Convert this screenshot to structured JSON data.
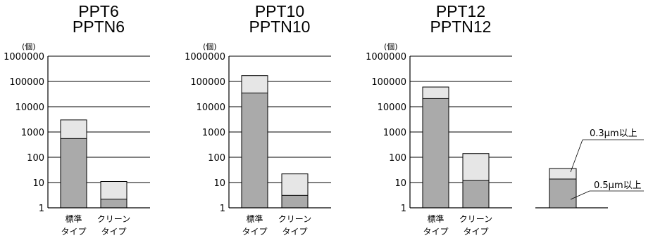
{
  "colors": {
    "lower_bar": "#aaaaaa",
    "upper_bar": "#e6e6e6",
    "stroke": "#000000"
  },
  "chart_data": [
    {
      "type": "bar",
      "title": [
        "PPT6",
        "PPTN6"
      ],
      "unit": "(個)",
      "yscale": "log",
      "ylim": [
        1,
        1000000
      ],
      "yticks": [
        "1000000",
        "100000",
        "10000",
        "1000",
        "100",
        "10",
        "1"
      ],
      "grid": true,
      "categories": [
        [
          "標準",
          "タイプ"
        ],
        [
          "クリーン",
          "タイプ"
        ]
      ],
      "series": [
        {
          "name": "0.5μm以上",
          "values": [
            550,
            2.2
          ]
        },
        {
          "name": "0.3μm以上",
          "values": [
            3000,
            11
          ]
        }
      ]
    },
    {
      "type": "bar",
      "title": [
        "PPT10",
        "PPTN10"
      ],
      "unit": "(個)",
      "yscale": "log",
      "ylim": [
        1,
        1000000
      ],
      "yticks": [
        "1000000",
        "100000",
        "10000",
        "1000",
        "100",
        "10",
        "1"
      ],
      "grid": true,
      "categories": [
        [
          "標準",
          "タイプ"
        ],
        [
          "クリーン",
          "タイプ"
        ]
      ],
      "series": [
        {
          "name": "0.5μm以上",
          "values": [
            35000,
            3.1
          ]
        },
        {
          "name": "0.3μm以上",
          "values": [
            170000,
            22
          ]
        }
      ]
    },
    {
      "type": "bar",
      "title": [
        "PPT12",
        "PPTN12"
      ],
      "unit": "(個)",
      "yscale": "log",
      "ylim": [
        1,
        1000000
      ],
      "yticks": [
        "1000000",
        "100000",
        "10000",
        "1000",
        "100",
        "10",
        "1"
      ],
      "grid": true,
      "categories": [
        [
          "標準",
          "タイプ"
        ],
        [
          "クリーン",
          "タイプ"
        ]
      ],
      "series": [
        {
          "name": "0.5μm以上",
          "values": [
            21000,
            12
          ]
        },
        {
          "name": "0.3μm以上",
          "values": [
            60000,
            140
          ]
        }
      ]
    }
  ],
  "legend": {
    "upper_label": "0.3μm以上",
    "lower_label": "0.5μm以上"
  }
}
